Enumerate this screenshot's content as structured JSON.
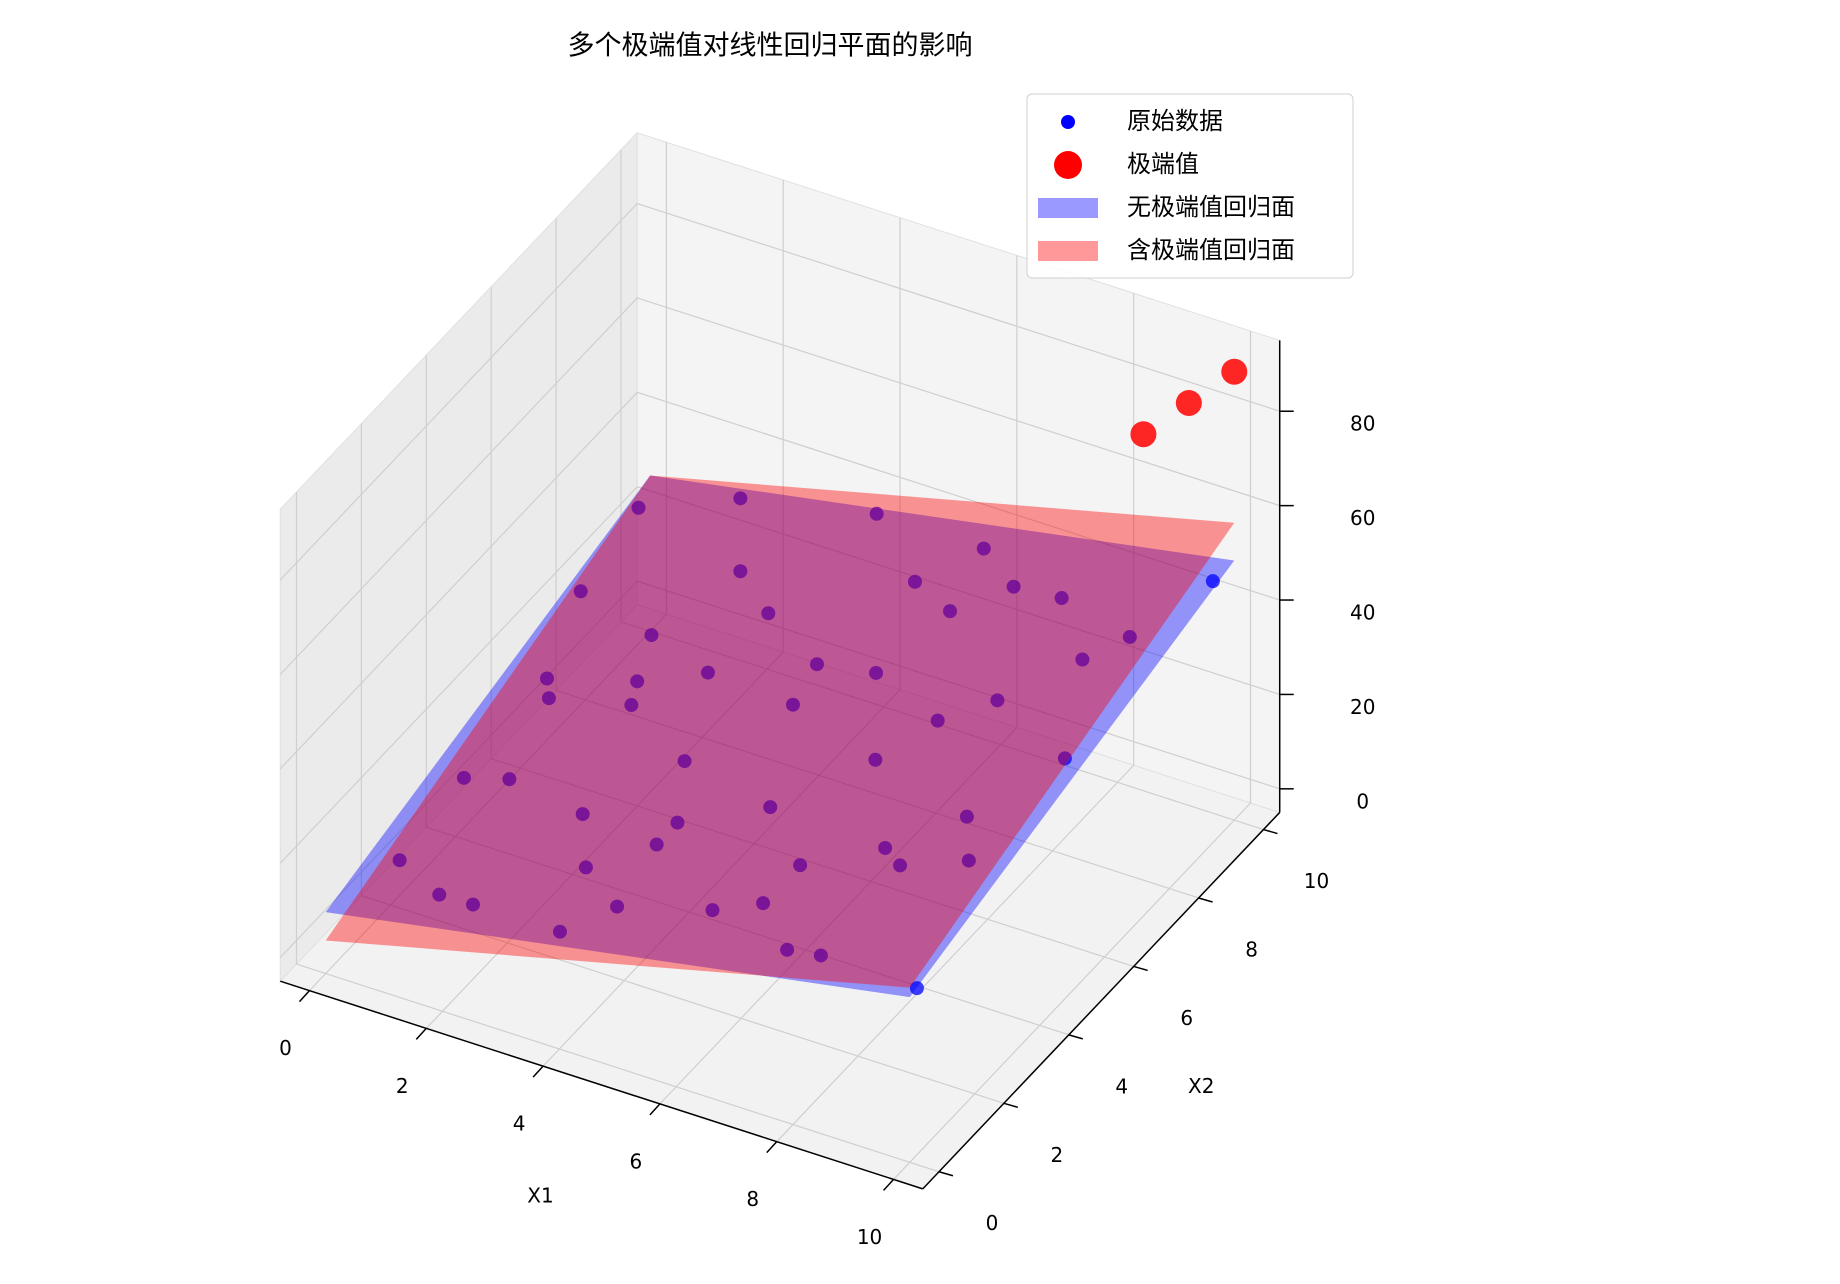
{
  "chart_data": {
    "type": "scatter3d",
    "title": "多个极端值对线性回归平面的影响",
    "xlabel": "X1",
    "ylabel": "X2",
    "xlim": [
      -0.5,
      10.5
    ],
    "ylim": [
      -0.5,
      10.5
    ],
    "zlim": [
      -5,
      95
    ],
    "xticks": [
      0,
      2,
      4,
      6,
      8,
      10
    ],
    "yticks": [
      0,
      2,
      4,
      6,
      8,
      10
    ],
    "zticks": [
      0,
      20,
      40,
      60,
      80
    ],
    "grid": true,
    "legend": "upper right",
    "series": [
      {
        "name": "原始数据",
        "color": "#0000ff",
        "x": [
          0.6,
          1.2,
          2.3,
          3.1,
          4.5,
          5.2,
          6.8,
          7.4,
          8.9,
          9.6,
          0.3,
          1.8,
          2.9,
          3.7,
          4.1,
          5.9,
          6.3,
          7.8,
          8.2,
          9.1,
          0.9,
          1.5,
          2.6,
          3.4,
          4.8,
          5.5,
          6.1,
          7.2,
          8.5,
          9.8,
          0.2,
          1.1,
          2.0,
          3.9,
          4.3,
          5.0,
          6.6,
          7.0,
          8.7,
          9.4,
          0.7,
          1.6,
          2.4,
          3.3,
          4.6,
          5.7,
          6.9,
          7.6,
          8.0,
          9.9
        ],
        "y": [
          1.2,
          3.5,
          0.4,
          6.2,
          2.1,
          8.8,
          4.7,
          0.9,
          7.3,
          5.5,
          9.1,
          6.8,
          2.7,
          4.4,
          9.6,
          1.3,
          7.9,
          3.2,
          0.5,
          8.4,
          5.2,
          0.8,
          8.1,
          1.9,
          6.5,
          3.8,
          9.3,
          5.9,
          2.4,
          9.7,
          7.5,
          4.9,
          6.0,
          0.2,
          3.1,
          5.4,
          1.6,
          8.6,
          4.1,
          2.9,
          3.0,
          9.9,
          5.1,
          7.7,
          0.7,
          6.7,
          2.2,
          9.0,
          6.3,
          0.4
        ],
        "z": [
          12.7,
          15.6,
          15.9,
          26.2,
          25.1,
          35.0,
          33.4,
          23.1,
          44.2,
          39.1,
          28.9,
          24.6,
          20.8,
          22.9,
          39.2,
          22.6,
          39.7,
          29.6,
          28.0,
          41.8,
          23.4,
          11.9,
          31.9,
          17.3,
          32.6,
          24.7,
          42.0,
          34.6,
          34.5,
          47.0,
          22.4,
          22.2,
          21.4,
          18.0,
          21.7,
          32.8,
          24.7,
          42.6,
          33.3,
          35.5,
          17.5,
          30.3,
          24.5,
          28.7,
          22.5,
          32.9,
          29.6,
          39.7,
          39.2,
          28.6
        ]
      },
      {
        "name": "极端值",
        "color": "#ff0000",
        "x": [
          9.0,
          9.5,
          10.0
        ],
        "y": [
          9.0,
          9.5,
          10.0
        ],
        "z": [
          80,
          85,
          90
        ]
      }
    ],
    "surfaces": [
      {
        "name": "无极端值回归面",
        "color": "#0000ff",
        "x": [
          0,
          10
        ],
        "y": [
          0,
          10
        ],
        "z": [
          [
            8,
            30
          ],
          [
            28,
            50
          ]
        ]
      },
      {
        "name": "含极端值回归面",
        "color": "#ff0000",
        "x": [
          0,
          10
        ],
        "y": [
          0,
          10
        ],
        "z": [
          [
            2,
            32
          ],
          [
            28,
            58
          ]
        ]
      }
    ]
  }
}
